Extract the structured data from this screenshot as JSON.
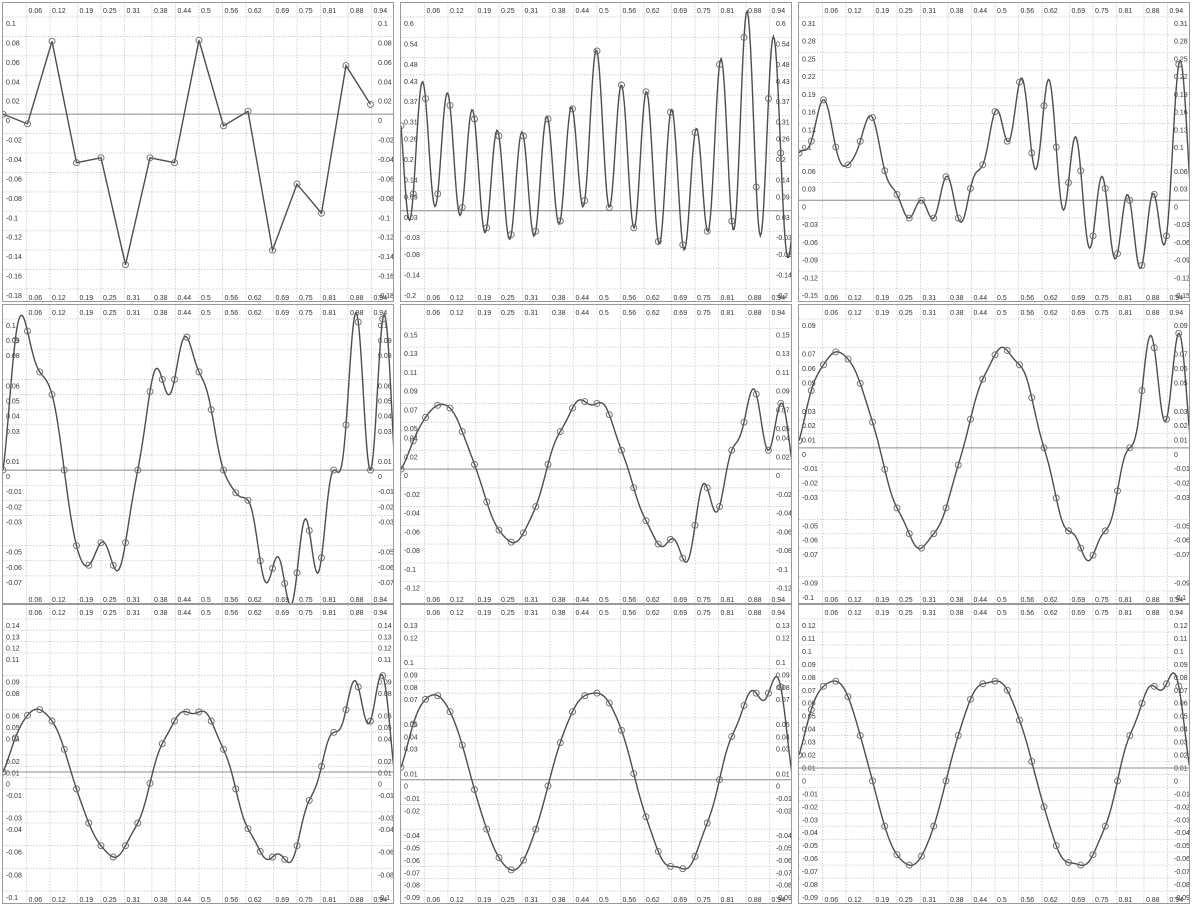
{
  "colors": {
    "background": "#ffffff",
    "grid": "#c8c8c8",
    "axis": "#8c8c8c",
    "curve": "#4d4d4d",
    "marker": "#6a6a6a",
    "tick_text": "#333333"
  },
  "chart_data": [
    {
      "type": "line",
      "x_ticks": [
        "0.06",
        "0.12",
        "0.19",
        "0.25",
        "0.31",
        "0.38",
        "0.44",
        "0.5",
        "0.56",
        "0.62",
        "0.69",
        "0.75",
        "0.81",
        "0.88",
        "0.94"
      ],
      "y_ticks": [
        "0.1",
        "0.08",
        "0.06",
        "0.04",
        "0.02",
        "0",
        "-0.02",
        "-0.04",
        "-0.06",
        "-0.08",
        "-0.1",
        "-0.12",
        "-0.14",
        "-0.16",
        "-0.18"
      ],
      "ylim": [
        -0.18,
        0.1
      ],
      "grid": true,
      "interpolation": "linear",
      "markers": true,
      "series": [
        {
          "x": [
            0,
            0.0625,
            0.125,
            0.1875,
            0.25,
            0.3125,
            0.375,
            0.4375,
            0.5,
            0.5625,
            0.625,
            0.6875,
            0.75,
            0.8125,
            0.875,
            0.9375
          ],
          "y": [
            0,
            -0.01,
            0.075,
            -0.05,
            -0.045,
            -0.155,
            -0.045,
            -0.05,
            0.076,
            -0.012,
            0.003,
            -0.14,
            -0.072,
            -0.102,
            0.05,
            0.01
          ]
        }
      ],
      "baseline": 0
    },
    {
      "type": "line",
      "x_ticks": [
        "0.06",
        "0.12",
        "0.19",
        "0.25",
        "0.31",
        "0.38",
        "0.44",
        "0.5",
        "0.56",
        "0.62",
        "0.69",
        "0.75",
        "0.81",
        "0.88",
        "0.94"
      ],
      "y_ticks": [
        "0.6",
        "0.54",
        "0.48",
        "0.43",
        "0.37",
        "0.31",
        "0.26",
        "0.2",
        "0.14",
        "0.09",
        "0.03",
        "-0.03",
        "-0.08",
        "-0.14",
        "-0.2"
      ],
      "ylim": [
        -0.2,
        0.6
      ],
      "grid": true,
      "interpolation": "sinc",
      "markers": true,
      "series": [
        {
          "x": [
            0,
            0.03125,
            0.0625,
            0.09375,
            0.125,
            0.15625,
            0.1875,
            0.21875,
            0.25,
            0.28125,
            0.3125,
            0.34375,
            0.375,
            0.40625,
            0.4375,
            0.46875,
            0.5,
            0.53125,
            0.5625,
            0.59375,
            0.625,
            0.65625,
            0.6875,
            0.71875,
            0.75,
            0.78125,
            0.8125,
            0.84375,
            0.875,
            0.90625,
            0.9375,
            0.96875
          ],
          "y": [
            0.28,
            0.08,
            0.36,
            0.08,
            0.34,
            0.04,
            0.3,
            -0.02,
            0.25,
            -0.04,
            0.25,
            -0.03,
            0.3,
            0.0,
            0.33,
            0.06,
            0.5,
            0.04,
            0.4,
            -0.02,
            0.38,
            -0.06,
            0.32,
            -0.07,
            0.26,
            -0.03,
            0.46,
            0.0,
            0.54,
            0.1,
            0.36,
            0.2
          ]
        }
      ],
      "baseline": 0.03
    },
    {
      "type": "line",
      "x_ticks": [
        "0.06",
        "0.12",
        "0.19",
        "0.25",
        "0.31",
        "0.38",
        "0.44",
        "0.5",
        "0.56",
        "0.62",
        "0.69",
        "0.75",
        "0.81",
        "0.88",
        "0.94"
      ],
      "y_ticks": [
        "0.31",
        "0.28",
        "0.25",
        "0.22",
        "0.19",
        "0.16",
        "0.13",
        "0.1",
        "0.06",
        "0.03",
        "0",
        "-0.03",
        "-0.06",
        "-0.09",
        "-0.12",
        "-0.15"
      ],
      "ylim": [
        -0.15,
        0.31
      ],
      "grid": true,
      "interpolation": "sinc",
      "markers": true,
      "series": [
        {
          "x": [
            0,
            0.03125,
            0.0625,
            0.09375,
            0.125,
            0.15625,
            0.1875,
            0.21875,
            0.25,
            0.28125,
            0.3125,
            0.34375,
            0.375,
            0.40625,
            0.4375,
            0.46875,
            0.5,
            0.53125,
            0.5625,
            0.59375,
            0.625,
            0.65625,
            0.6875,
            0.71875,
            0.75,
            0.78125,
            0.8125,
            0.84375,
            0.875,
            0.90625,
            0.9375,
            0.96875
          ],
          "y": [
            0.08,
            0.1,
            0.17,
            0.09,
            0.06,
            0.1,
            0.14,
            0.05,
            0.01,
            -0.03,
            0.0,
            -0.03,
            0.04,
            -0.03,
            0.02,
            0.06,
            0.15,
            0.1,
            0.2,
            0.08,
            0.16,
            0.09,
            0.03,
            0.05,
            -0.06,
            0.02,
            -0.09,
            0.0,
            -0.11,
            0.01,
            -0.06,
            0.23
          ]
        }
      ],
      "baseline": 0
    },
    {
      "type": "line",
      "x_ticks": [
        "0.06",
        "0.12",
        "0.19",
        "0.25",
        "0.31",
        "0.38",
        "0.44",
        "0.5",
        "0.56",
        "0.62",
        "0.69",
        "0.75",
        "0.81",
        "0.88",
        "0.94"
      ],
      "y_ticks": [
        "0.1",
        "0.09",
        "0.08",
        "0.06",
        "0.05",
        "0.04",
        "0.03",
        "0.01",
        "0",
        "-0.01",
        "-0.02",
        "-0.03",
        "-0.05",
        "-0.06",
        "-0.07"
      ],
      "ylim": [
        -0.08,
        0.1
      ],
      "grid": true,
      "interpolation": "sinc",
      "markers": true,
      "series": [
        {
          "x": [
            0,
            0.03125,
            0.0625,
            0.09375,
            0.125,
            0.15625,
            0.1875,
            0.21875,
            0.25,
            0.28125,
            0.3125,
            0.34375,
            0.375,
            0.40625,
            0.4375,
            0.46875,
            0.5,
            0.53125,
            0.5625,
            0.59375,
            0.625,
            0.65625,
            0.6875,
            0.71875,
            0.75,
            0.78125,
            0.8125,
            0.84375,
            0.875,
            0.90625,
            0.9375,
            0.96875
          ],
          "y": [
            0.0,
            0.086,
            0.092,
            0.065,
            0.05,
            0.0,
            -0.05,
            -0.063,
            -0.048,
            -0.063,
            -0.048,
            0.0,
            0.052,
            0.06,
            0.06,
            0.088,
            0.065,
            0.04,
            0.0,
            -0.015,
            -0.02,
            -0.06,
            -0.065,
            -0.075,
            -0.068,
            -0.04,
            -0.058,
            0.0,
            0.03,
            0.098,
            0.0,
            0.1
          ]
        }
      ],
      "baseline": 0
    },
    {
      "type": "line",
      "x_ticks": [
        "0.06",
        "0.12",
        "0.19",
        "0.25",
        "0.31",
        "0.38",
        "0.44",
        "0.5",
        "0.56",
        "0.62",
        "0.69",
        "0.75",
        "0.81",
        "0.88",
        "0.94"
      ],
      "y_ticks": [
        "0.15",
        "0.13",
        "0.11",
        "0.09",
        "0.07",
        "0.05",
        "0.04",
        "0.02",
        "0",
        "-0.02",
        "-0.04",
        "-0.06",
        "-0.08",
        "-0.1",
        "-0.12"
      ],
      "ylim": [
        -0.13,
        0.16
      ],
      "grid": true,
      "interpolation": "sinc",
      "markers": true,
      "series": [
        {
          "x": [
            0,
            0.03125,
            0.0625,
            0.09375,
            0.125,
            0.15625,
            0.1875,
            0.21875,
            0.25,
            0.28125,
            0.3125,
            0.34375,
            0.375,
            0.40625,
            0.4375,
            0.46875,
            0.5,
            0.53125,
            0.5625,
            0.59375,
            0.625,
            0.65625,
            0.6875,
            0.71875,
            0.75,
            0.78125,
            0.8125,
            0.84375,
            0.875,
            0.90625,
            0.9375,
            0.96875
          ],
          "y": [
            0.0,
            0.03,
            0.055,
            0.068,
            0.065,
            0.04,
            0.005,
            -0.035,
            -0.065,
            -0.078,
            -0.068,
            -0.04,
            0.005,
            0.04,
            0.065,
            0.072,
            0.07,
            0.058,
            0.02,
            -0.02,
            -0.055,
            -0.08,
            -0.075,
            -0.095,
            -0.06,
            -0.02,
            -0.04,
            0.02,
            0.05,
            0.08,
            0.02,
            0.07
          ]
        }
      ],
      "baseline": 0
    },
    {
      "type": "line",
      "x_ticks": [
        "0.06",
        "0.12",
        "0.19",
        "0.25",
        "0.31",
        "0.38",
        "0.44",
        "0.5",
        "0.56",
        "0.62",
        "0.69",
        "0.75",
        "0.81",
        "0.88",
        "0.94"
      ],
      "y_ticks": [
        "0.09",
        "0.07",
        "0.06",
        "0.05",
        "0.03",
        "0.02",
        "0.01",
        "0",
        "-0.01",
        "-0.02",
        "-0.03",
        "-0.05",
        "-0.06",
        "-0.07",
        "-0.09",
        "-0.1"
      ],
      "ylim": [
        -0.1,
        0.09
      ],
      "grid": true,
      "interpolation": "sinc",
      "markers": true,
      "series": [
        {
          "x": [
            0,
            0.03125,
            0.0625,
            0.09375,
            0.125,
            0.15625,
            0.1875,
            0.21875,
            0.25,
            0.28125,
            0.3125,
            0.34375,
            0.375,
            0.40625,
            0.4375,
            0.46875,
            0.5,
            0.53125,
            0.5625,
            0.59375,
            0.625,
            0.65625,
            0.6875,
            0.71875,
            0.75,
            0.78125,
            0.8125,
            0.84375,
            0.875,
            0.90625,
            0.9375,
            0.96875
          ],
          "y": [
            0.005,
            0.04,
            0.058,
            0.067,
            0.062,
            0.045,
            0.018,
            -0.015,
            -0.042,
            -0.06,
            -0.07,
            -0.06,
            -0.042,
            -0.012,
            0.02,
            0.048,
            0.065,
            0.068,
            0.058,
            0.035,
            0.0,
            -0.035,
            -0.058,
            -0.07,
            -0.075,
            -0.058,
            -0.03,
            0.0,
            0.04,
            0.07,
            0.02,
            0.08
          ]
        }
      ],
      "baseline": 0
    },
    {
      "type": "line",
      "x_ticks": [
        "0.06",
        "0.12",
        "0.19",
        "0.25",
        "0.31",
        "0.38",
        "0.44",
        "0.5",
        "0.56",
        "0.62",
        "0.69",
        "0.75",
        "0.81",
        "0.88",
        "0.94"
      ],
      "y_ticks": [
        "0.14",
        "0.13",
        "0.12",
        "0.11",
        "0.09",
        "0.08",
        "0.06",
        "0.05",
        "0.04",
        "0.02",
        "0.01",
        "0",
        "-0.01",
        "-0.03",
        "-0.04",
        "-0.06",
        "-0.08",
        "-0.1"
      ],
      "ylim": [
        -0.1,
        0.14
      ],
      "grid": true,
      "interpolation": "sinc",
      "markers": true,
      "series": [
        {
          "x": [
            0,
            0.03125,
            0.0625,
            0.09375,
            0.125,
            0.15625,
            0.1875,
            0.21875,
            0.25,
            0.28125,
            0.3125,
            0.34375,
            0.375,
            0.40625,
            0.4375,
            0.46875,
            0.5,
            0.53125,
            0.5625,
            0.59375,
            0.625,
            0.65625,
            0.6875,
            0.71875,
            0.75,
            0.78125,
            0.8125,
            0.84375,
            0.875,
            0.90625,
            0.9375,
            0.96875
          ],
          "y": [
            0.005,
            0.035,
            0.055,
            0.06,
            0.05,
            0.025,
            -0.01,
            -0.04,
            -0.06,
            -0.07,
            -0.06,
            -0.04,
            -0.005,
            0.03,
            0.05,
            0.058,
            0.058,
            0.05,
            0.025,
            -0.01,
            -0.045,
            -0.065,
            -0.07,
            -0.072,
            -0.06,
            -0.02,
            0.01,
            0.04,
            0.06,
            0.08,
            0.05,
            0.09
          ]
        }
      ],
      "baseline": 0.005
    },
    {
      "type": "line",
      "x_ticks": [
        "0.06",
        "0.12",
        "0.19",
        "0.25",
        "0.31",
        "0.38",
        "0.44",
        "0.5",
        "0.56",
        "0.62",
        "0.69",
        "0.75",
        "0.81",
        "0.88",
        "0.94"
      ],
      "y_ticks": [
        "0.13",
        "0.12",
        "0.1",
        "0.09",
        "0.08",
        "0.07",
        "0.05",
        "0.04",
        "0.03",
        "0.01",
        "0",
        "-0.01",
        "-0.02",
        "-0.04",
        "-0.05",
        "-0.06",
        "-0.07",
        "-0.08",
        "-0.09"
      ],
      "ylim": [
        -0.09,
        0.13
      ],
      "grid": true,
      "interpolation": "sinc",
      "markers": true,
      "series": [
        {
          "x": [
            0,
            0.03125,
            0.0625,
            0.09375,
            0.125,
            0.15625,
            0.1875,
            0.21875,
            0.25,
            0.28125,
            0.3125,
            0.34375,
            0.375,
            0.40625,
            0.4375,
            0.46875,
            0.5,
            0.53125,
            0.5625,
            0.59375,
            0.625,
            0.65625,
            0.6875,
            0.71875,
            0.75,
            0.78125,
            0.8125,
            0.84375,
            0.875,
            0.90625,
            0.9375,
            0.96875
          ],
          "y": [
            0.01,
            0.045,
            0.065,
            0.068,
            0.055,
            0.028,
            -0.008,
            -0.04,
            -0.063,
            -0.073,
            -0.065,
            -0.04,
            -0.005,
            0.03,
            0.055,
            0.068,
            0.07,
            0.062,
            0.04,
            0.005,
            -0.03,
            -0.058,
            -0.07,
            -0.072,
            -0.062,
            -0.035,
            0.0,
            0.035,
            0.06,
            0.07,
            0.07,
            0.075
          ]
        }
      ],
      "baseline": 0
    },
    {
      "type": "line",
      "x_ticks": [
        "0.06",
        "0.12",
        "0.19",
        "0.25",
        "0.31",
        "0.38",
        "0.44",
        "0.5",
        "0.56",
        "0.62",
        "0.69",
        "0.75",
        "0.81",
        "0.88",
        "0.94"
      ],
      "y_ticks": [
        "0.12",
        "0.11",
        "0.1",
        "0.09",
        "0.08",
        "0.07",
        "0.06",
        "0.05",
        "0.04",
        "0.03",
        "0.02",
        "0.01",
        "0",
        "-0.01",
        "-0.02",
        "-0.03",
        "-0.04",
        "-0.05",
        "-0.06",
        "-0.07",
        "-0.08",
        "-0.09"
      ],
      "ylim": [
        -0.09,
        0.12
      ],
      "grid": true,
      "interpolation": "sinc",
      "markers": true,
      "series": [
        {
          "x": [
            0,
            0.03125,
            0.0625,
            0.09375,
            0.125,
            0.15625,
            0.1875,
            0.21875,
            0.25,
            0.28125,
            0.3125,
            0.34375,
            0.375,
            0.40625,
            0.4375,
            0.46875,
            0.5,
            0.53125,
            0.5625,
            0.59375,
            0.625,
            0.65625,
            0.6875,
            0.71875,
            0.75,
            0.78125,
            0.8125,
            0.84375,
            0.875,
            0.90625,
            0.9375,
            0.96875
          ],
          "y": [
            0.015,
            0.05,
            0.068,
            0.072,
            0.06,
            0.03,
            -0.005,
            -0.04,
            -0.062,
            -0.07,
            -0.063,
            -0.04,
            -0.005,
            0.03,
            0.058,
            0.07,
            0.072,
            0.065,
            0.042,
            0.01,
            -0.025,
            -0.055,
            -0.068,
            -0.07,
            -0.062,
            -0.04,
            -0.005,
            0.03,
            0.055,
            0.068,
            0.07,
            0.068
          ]
        }
      ],
      "baseline": 0.005
    }
  ]
}
